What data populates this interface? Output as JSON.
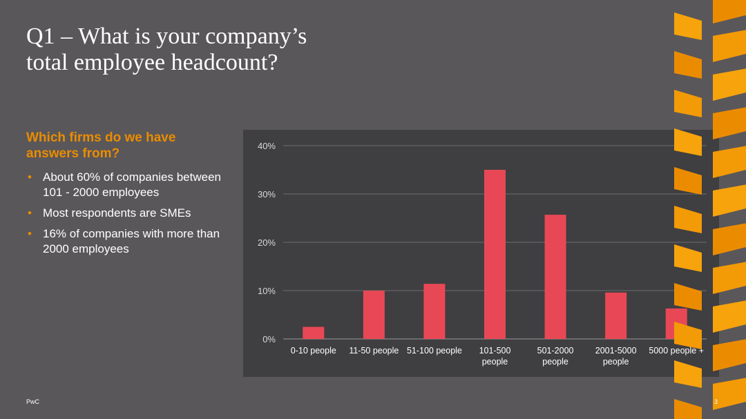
{
  "slide": {
    "title_line1": "Q1 – What is your company’s",
    "title_line2": "total employee headcount?",
    "subheading": "Which firms do we have answers from?",
    "bullets": [
      "About 60% of companies between 101 - 2000 employees",
      "Most respondents are SMEs",
      "16% of companies with more than 2000 employees"
    ],
    "footer_brand": "PwC",
    "page_number": "3"
  },
  "colors": {
    "background": "#59575a",
    "chart_background": "#3f3e41",
    "bar": "#e84855",
    "accent": "#eb8c00"
  },
  "chart_data": {
    "type": "bar",
    "categories": [
      [
        "0-10 people"
      ],
      [
        "11-50 people"
      ],
      [
        "51-100 people"
      ],
      [
        "101-500",
        "people"
      ],
      [
        "501-2000",
        "people"
      ],
      [
        "2001-5000",
        "people"
      ],
      [
        "5000 people +"
      ]
    ],
    "values": [
      2.5,
      10,
      11.4,
      35,
      25.7,
      9.6,
      6.3
    ],
    "yticks": [
      "0%",
      "10%",
      "20%",
      "30%",
      "40%"
    ],
    "ylim": [
      0,
      40
    ],
    "grid": true,
    "title": "",
    "xlabel": "",
    "ylabel": ""
  }
}
